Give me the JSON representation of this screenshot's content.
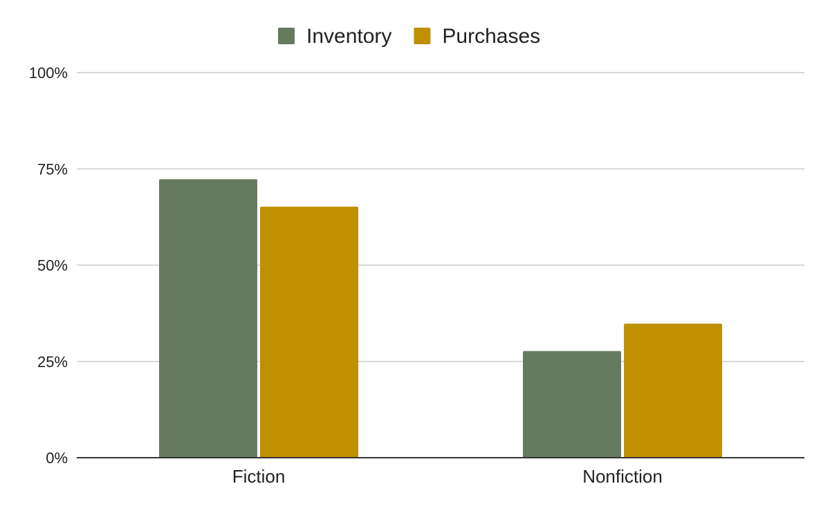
{
  "chart_data": {
    "type": "bar",
    "categories": [
      "Fiction",
      "Nonfiction"
    ],
    "series": [
      {
        "name": "Inventory",
        "color": "#667a5f",
        "values": [
          72.3,
          27.7
        ]
      },
      {
        "name": "Purchases",
        "color": "#bf9000",
        "values": [
          65.2,
          34.8
        ]
      }
    ],
    "ylim": [
      0,
      100
    ],
    "yticks": [
      0,
      25,
      50,
      75,
      100
    ],
    "ytick_labels": [
      "0%",
      "25%",
      "50%",
      "75%",
      "100%"
    ],
    "legend_position": "top-center",
    "grid": true
  }
}
